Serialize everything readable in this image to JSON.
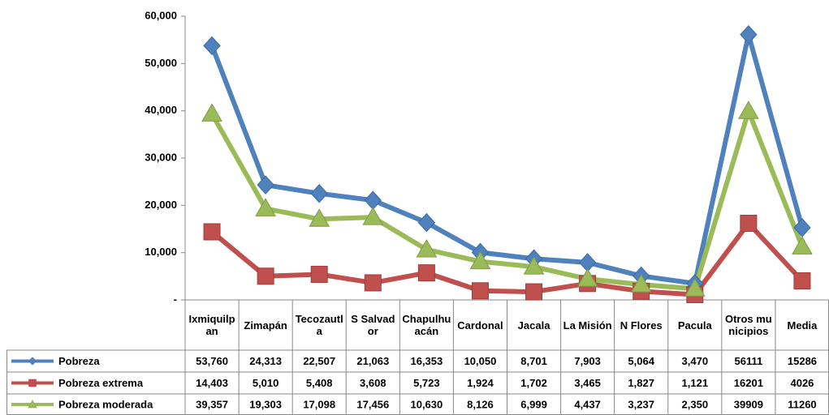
{
  "chart_data": {
    "type": "line",
    "categories": [
      "Ixmiquilpan",
      "Zimapán",
      "Tecozautla",
      "S Salvador",
      "Chapulhuacán",
      "Cardonal",
      "Jacala",
      "La Misión",
      "N Flores",
      "Pacula",
      "Otros municipios",
      "Media"
    ],
    "series": [
      {
        "name": "Pobreza",
        "color": "#4f81bd",
        "marker": "diamond",
        "values": [
          53760,
          24313,
          22507,
          21063,
          16353,
          10050,
          8701,
          7903,
          5064,
          3470,
          56111,
          15286
        ],
        "value_labels": [
          "53,760",
          "24,313",
          "22,507",
          "21,063",
          "16,353",
          "10,050",
          "8,701",
          "7,903",
          "5,064",
          "3,470",
          "56111",
          "15286"
        ]
      },
      {
        "name": "Pobreza extrema",
        "color": "#c0504d",
        "marker": "square",
        "values": [
          14403,
          5010,
          5408,
          3608,
          5723,
          1924,
          1702,
          3465,
          1827,
          1121,
          16201,
          4026
        ],
        "value_labels": [
          "14,403",
          "5,010",
          "5,408",
          "3,608",
          "5,723",
          "1,924",
          "1,702",
          "3,465",
          "1,827",
          "1,121",
          "16201",
          "4026"
        ]
      },
      {
        "name": "Pobreza moderada",
        "color": "#9bbb59",
        "marker": "triangle",
        "values": [
          39357,
          19303,
          17098,
          17456,
          10630,
          8126,
          6999,
          4437,
          3237,
          2350,
          39909,
          11260
        ],
        "value_labels": [
          "39,357",
          "19,303",
          "17,098",
          "17,456",
          "10,630",
          "8,126",
          "6,999",
          "4,437",
          "3,237",
          "2,350",
          "39909",
          "11260"
        ]
      }
    ],
    "ylim": [
      0,
      60000
    ],
    "yticks": [
      {
        "value": 0,
        "label": "-"
      },
      {
        "value": 10000,
        "label": "10,000"
      },
      {
        "value": 20000,
        "label": "20,000"
      },
      {
        "value": 30000,
        "label": "30,000"
      },
      {
        "value": 40000,
        "label": "40,000"
      },
      {
        "value": 50000,
        "label": "50,000"
      },
      {
        "value": 60000,
        "label": "60,000"
      }
    ],
    "grid": false
  }
}
